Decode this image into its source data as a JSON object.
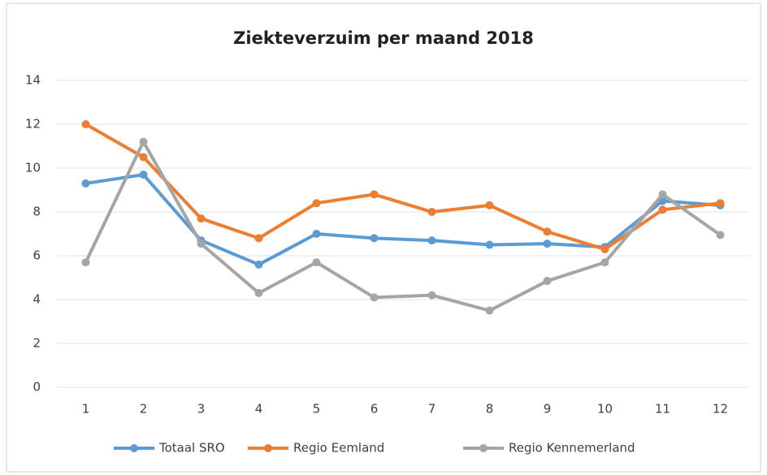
{
  "chart_data": {
    "type": "line",
    "title": "Ziekteverzuim per maand 2018",
    "categories": [
      "1",
      "2",
      "3",
      "4",
      "5",
      "6",
      "7",
      "8",
      "9",
      "10",
      "11",
      "12"
    ],
    "series": [
      {
        "name": "Totaal SRO",
        "color": "#5b9bd5",
        "values": [
          9.3,
          9.7,
          6.7,
          5.6,
          7.0,
          6.8,
          6.7,
          6.5,
          6.55,
          6.4,
          8.5,
          8.3
        ]
      },
      {
        "name": "Regio Eemland",
        "color": "#ed7d31",
        "values": [
          12.0,
          10.5,
          7.7,
          6.8,
          8.4,
          8.8,
          8.0,
          8.3,
          7.1,
          6.3,
          8.1,
          8.4
        ]
      },
      {
        "name": "Regio Kennemerland",
        "color": "#a5a5a5",
        "values": [
          5.7,
          11.2,
          6.55,
          4.3,
          5.7,
          4.1,
          4.2,
          3.5,
          4.85,
          5.7,
          8.8,
          6.95
        ]
      }
    ],
    "ylim": [
      0,
      14
    ],
    "yticks": [
      0,
      2,
      4,
      6,
      8,
      10,
      12,
      14
    ],
    "grid": true,
    "legend": "bottom"
  }
}
